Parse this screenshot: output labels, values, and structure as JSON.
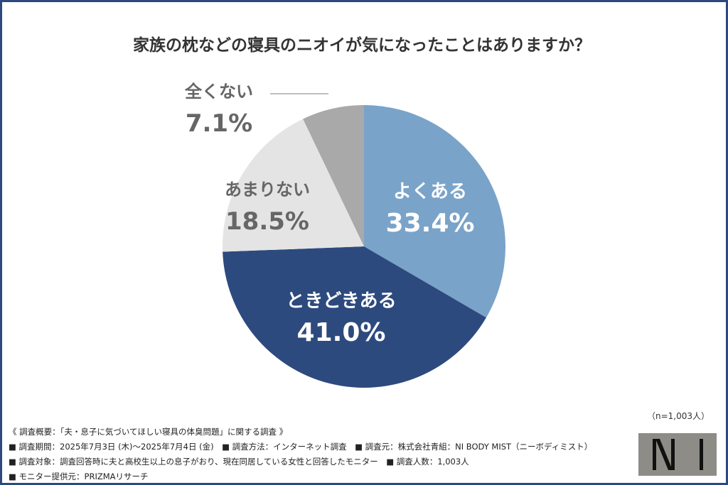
{
  "title": "家族の枕などの寝具のニオイが気になったことはありますか？",
  "chart_data": {
    "type": "pie",
    "title": "家族の枕などの寝具のニオイが気になったことはありますか？",
    "start": "top",
    "direction": "clockwise",
    "slices": [
      {
        "label": "よくある",
        "value": 33.4,
        "display": "33.4%",
        "color": "#7aa3c9"
      },
      {
        "label": "ときどきある",
        "value": 41.0,
        "display": "41.0%",
        "color": "#2d4a7e"
      },
      {
        "label": "あまりない",
        "value": 18.5,
        "display": "18.5%",
        "color": "#e4e4e4"
      },
      {
        "label": "全くない",
        "value": 7.1,
        "display": "7.1%",
        "color": "#a9a9a9"
      }
    ]
  },
  "sample": "（n=1,003人）",
  "footer": [
    "《 調査概要：「夫・息子に気づいてほしい寝具の体臭問題」に関する調査 》",
    "■ 調査期間：2025年7月3日 (木)〜2025年7月4日 (金)　■ 調査方法：インターネット調査　■ 調査元：株式会社青組：NI BODY MIST（ニーボディミスト）",
    "■ 調査対象：調査回答時に夫と高校生以上の息子がおり、現在同居している女性と回答したモニター　■ 調査人数：1,003人",
    "■ モニター提供元：PRIZMAリサーチ"
  ],
  "logo": {
    "text": "NI",
    "color": "#8e8c86"
  }
}
